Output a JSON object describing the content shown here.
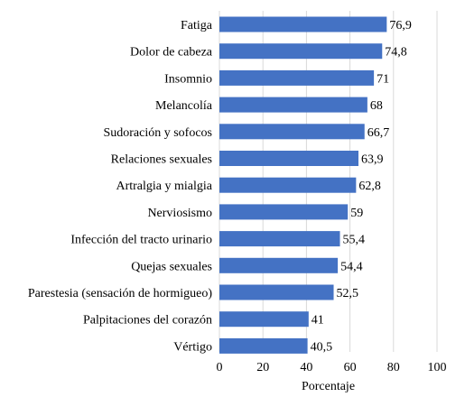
{
  "chart_data": {
    "type": "bar",
    "orientation": "horizontal",
    "categories": [
      "Fatiga",
      "Dolor de cabeza",
      "Insomnio",
      "Melancolía",
      "Sudoración y sofocos",
      "Relaciones sexuales",
      "Artralgia y mialgia",
      "Nerviosismo",
      "Infección del tracto urinario",
      "Quejas sexuales",
      "Parestesia (sensación de hormigueo)",
      "Palpitaciones del corazón",
      "Vértigo"
    ],
    "values": [
      76.9,
      74.8,
      71,
      68,
      66.7,
      63.9,
      62.8,
      59,
      55.4,
      54.4,
      52.5,
      41,
      40.5
    ],
    "value_labels": [
      "76,9",
      "74,8",
      "71",
      "68",
      "66,7",
      "63,9",
      "62,8",
      "59",
      "55,4",
      "54,4",
      "52,5",
      "41",
      "40,5"
    ],
    "xlabel": "Porcentaje",
    "ylabel": "",
    "xlim": [
      0,
      100
    ],
    "xticks": [
      0,
      20,
      40,
      60,
      80,
      100
    ],
    "grid": "vertical",
    "legend": "none",
    "bar_color": "#4472C4"
  }
}
